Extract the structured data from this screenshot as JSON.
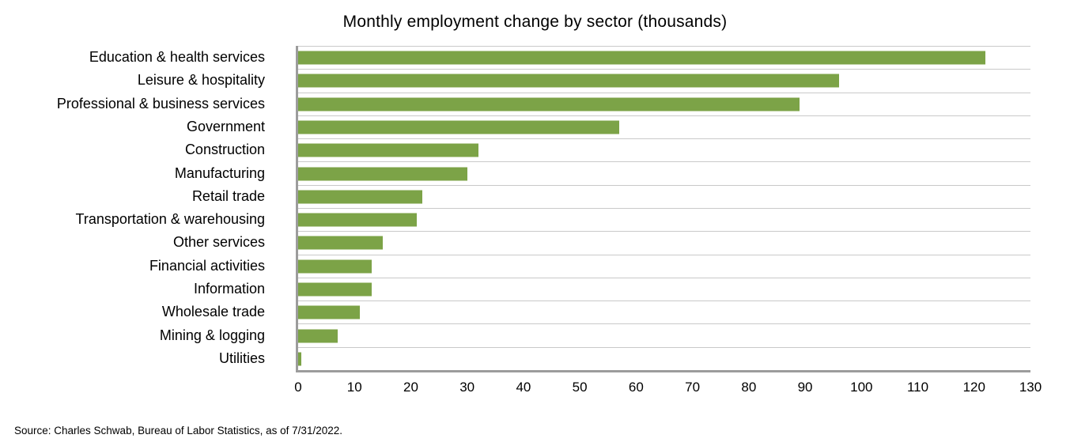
{
  "title": "Monthly employment change by sector (thousands)",
  "source_note": "Source: Charles Schwab, Bureau of Labor Statistics, as of 7/31/2022.",
  "chart_data": {
    "type": "bar",
    "orientation": "horizontal",
    "title": "Monthly employment change by sector (thousands)",
    "categories": [
      "Education & health services",
      "Leisure & hospitality",
      "Professional & business services",
      "Government",
      "Construction",
      "Manufacturing",
      "Retail trade",
      "Transportation & warehousing",
      "Other services",
      "Financial activities",
      "Information",
      "Wholesale trade",
      "Mining & logging",
      "Utilities"
    ],
    "values": [
      122,
      96,
      89,
      57,
      32,
      30,
      22,
      21,
      15,
      13,
      13,
      11,
      7,
      0.6
    ],
    "xlabel": "",
    "ylabel": "",
    "xlim": [
      0,
      130
    ],
    "xticks": [
      0,
      10,
      20,
      30,
      40,
      50,
      60,
      70,
      80,
      90,
      100,
      110,
      120,
      130
    ],
    "grid": "horizontal lines at category boundaries, no vertical gridlines",
    "legend_position": "none",
    "colors": {
      "bar": "#7ca347",
      "gridline": "#c9c9c9",
      "axis": "#9c9c9c",
      "text": "#000000",
      "background": "#ffffff"
    }
  }
}
